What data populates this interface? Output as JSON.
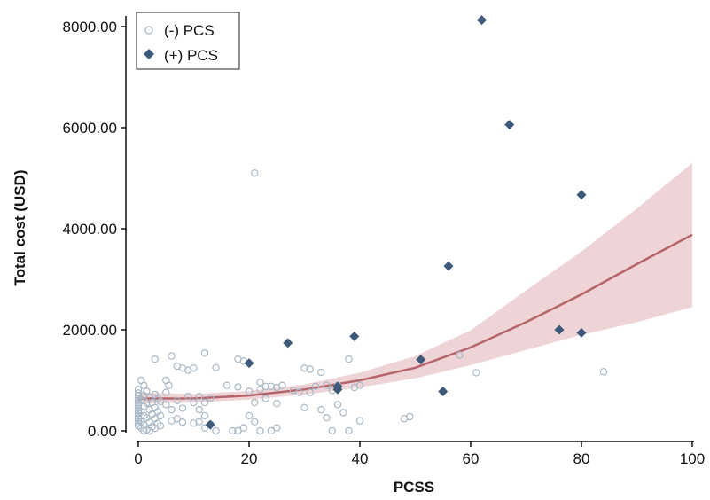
{
  "chart_data": {
    "type": "scatter",
    "xlabel": "PCSS",
    "ylabel": "Total cost (USD)",
    "xlim": [
      0,
      100
    ],
    "ylim": [
      0,
      8000
    ],
    "x_ticks": [
      0,
      20,
      40,
      60,
      80,
      100
    ],
    "x_tick_labels": [
      "0",
      "20",
      "40",
      "60",
      "80",
      "100"
    ],
    "y_ticks": [
      0,
      2000,
      4000,
      6000,
      8000
    ],
    "y_tick_labels": [
      "0.00",
      "2000.00",
      "4000.00",
      "6000.00",
      "8000.00"
    ],
    "grid": false,
    "legend_position": "top-left",
    "series": [
      {
        "name": "(-) PCS",
        "marker": "open-circle",
        "color": "#a8b8c6",
        "points": [
          [
            0,
            700
          ],
          [
            0,
            650
          ],
          [
            0,
            600
          ],
          [
            0,
            550
          ],
          [
            0,
            500
          ],
          [
            0,
            450
          ],
          [
            0,
            400
          ],
          [
            0,
            350
          ],
          [
            0,
            300
          ],
          [
            0,
            250
          ],
          [
            0,
            200
          ],
          [
            0,
            150
          ],
          [
            0,
            100
          ],
          [
            0,
            750
          ],
          [
            0,
            820
          ],
          [
            0.5,
            1000
          ],
          [
            0.5,
            620
          ],
          [
            0.5,
            380
          ],
          [
            0.5,
            180
          ],
          [
            0.5,
            60
          ],
          [
            1,
            900
          ],
          [
            1,
            700
          ],
          [
            1,
            480
          ],
          [
            1,
            300
          ],
          [
            1,
            120
          ],
          [
            1,
            0
          ],
          [
            1.5,
            780
          ],
          [
            1.5,
            550
          ],
          [
            1.5,
            260
          ],
          [
            1.5,
            20
          ],
          [
            2,
            660
          ],
          [
            2,
            420
          ],
          [
            2,
            170
          ],
          [
            2,
            0
          ],
          [
            2.5,
            560
          ],
          [
            2.5,
            330
          ],
          [
            2.5,
            80
          ],
          [
            3,
            1420
          ],
          [
            3,
            720
          ],
          [
            3,
            460
          ],
          [
            3,
            240
          ],
          [
            3,
            50
          ],
          [
            3.5,
            640
          ],
          [
            3.5,
            380
          ],
          [
            3.5,
            150
          ],
          [
            4,
            580
          ],
          [
            4,
            300
          ],
          [
            4,
            100
          ],
          [
            5,
            760
          ],
          [
            5,
            520
          ],
          [
            5,
            1000
          ],
          [
            5.5,
            900
          ],
          [
            6,
            1480
          ],
          [
            6,
            420
          ],
          [
            6,
            200
          ],
          [
            7,
            600
          ],
          [
            7,
            1280
          ],
          [
            7,
            240
          ],
          [
            8,
            1240
          ],
          [
            8,
            450
          ],
          [
            8,
            170
          ],
          [
            9,
            680
          ],
          [
            9,
            1200
          ],
          [
            10,
            1240
          ],
          [
            10,
            150
          ],
          [
            10,
            560
          ],
          [
            11,
            680
          ],
          [
            11,
            420
          ],
          [
            11,
            180
          ],
          [
            12,
            1540
          ],
          [
            12,
            560
          ],
          [
            12,
            300
          ],
          [
            12,
            60
          ],
          [
            13,
            650
          ],
          [
            13,
            130
          ],
          [
            14,
            1250
          ],
          [
            14,
            0
          ],
          [
            16,
            900
          ],
          [
            17,
            0
          ],
          [
            18,
            870
          ],
          [
            18,
            1420
          ],
          [
            18,
            0
          ],
          [
            19,
            1380
          ],
          [
            19,
            60
          ],
          [
            20,
            780
          ],
          [
            20,
            300
          ],
          [
            21,
            5100
          ],
          [
            21,
            560
          ],
          [
            21,
            180
          ],
          [
            22,
            960
          ],
          [
            22,
            820
          ],
          [
            22,
            0
          ],
          [
            23,
            880
          ],
          [
            23,
            640
          ],
          [
            24,
            880
          ],
          [
            24,
            0
          ],
          [
            25,
            860
          ],
          [
            25,
            540
          ],
          [
            25,
            60
          ],
          [
            26,
            900
          ],
          [
            28,
            800
          ],
          [
            29,
            760
          ],
          [
            30,
            1240
          ],
          [
            30,
            460
          ],
          [
            31,
            1220
          ],
          [
            31,
            760
          ],
          [
            32,
            880
          ],
          [
            33,
            1160
          ],
          [
            33,
            420
          ],
          [
            34,
            900
          ],
          [
            34,
            260
          ],
          [
            35,
            800
          ],
          [
            35,
            0
          ],
          [
            36,
            900
          ],
          [
            36,
            520
          ],
          [
            37,
            360
          ],
          [
            38,
            1420
          ],
          [
            38,
            0
          ],
          [
            39,
            860
          ],
          [
            40,
            900
          ],
          [
            40,
            200
          ],
          [
            48,
            240
          ],
          [
            49,
            280
          ],
          [
            58,
            1500
          ],
          [
            61,
            1150
          ],
          [
            84,
            1170
          ]
        ]
      },
      {
        "name": "(+) PCS",
        "marker": "filled-diamond",
        "color": "#3d5a7a",
        "points": [
          [
            13,
            120
          ],
          [
            20,
            1340
          ],
          [
            27,
            1740
          ],
          [
            36,
            880
          ],
          [
            36,
            820
          ],
          [
            39,
            1870
          ],
          [
            51,
            1410
          ],
          [
            55,
            780
          ],
          [
            56,
            3260
          ],
          [
            62,
            8130
          ],
          [
            67,
            6060
          ],
          [
            76,
            2000
          ],
          [
            80,
            4670
          ],
          [
            80,
            1940
          ]
        ]
      }
    ],
    "fit": {
      "type": "quadratic",
      "x": [
        0,
        10,
        20,
        30,
        40,
        50,
        60,
        70,
        80,
        90,
        100
      ],
      "y": [
        640,
        640,
        700,
        820,
        1000,
        1250,
        1650,
        2150,
        2700,
        3300,
        3880
      ],
      "ci_lower": [
        540,
        560,
        620,
        720,
        860,
        1040,
        1300,
        1600,
        1900,
        2150,
        2450
      ],
      "ci_upper": [
        760,
        730,
        790,
        920,
        1150,
        1480,
        1990,
        2780,
        3550,
        4400,
        5300
      ],
      "line_color": "#b5646a",
      "band_color": "#e8c6c9"
    }
  }
}
